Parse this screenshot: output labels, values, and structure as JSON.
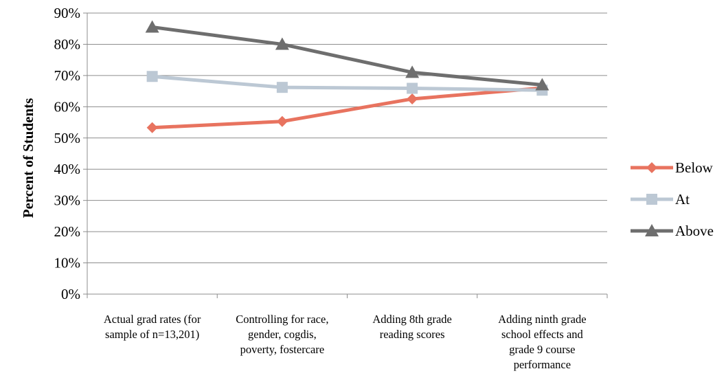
{
  "chart_data": {
    "type": "line",
    "ylabel": "Percent of Students",
    "ylim": [
      0,
      90
    ],
    "ytick_step": 10,
    "ytick_suffix": "%",
    "grid": true,
    "legend_position": "right",
    "categories": [
      [
        "Actual grad rates (for",
        "sample of n=13,201)"
      ],
      [
        "Controlling for race,",
        "gender, cogdis,",
        "poverty, fostercare"
      ],
      [
        "Adding 8th grade",
        "reading scores"
      ],
      [
        "Adding ninth grade",
        "school effects and",
        "grade 9 course",
        "performance"
      ]
    ],
    "series": [
      {
        "name": "Below",
        "marker": "diamond",
        "color": "#E8735F",
        "values": [
          53.3,
          55.3,
          62.5,
          66.0
        ]
      },
      {
        "name": "At",
        "marker": "square",
        "color": "#BCC8D4",
        "values": [
          69.7,
          66.2,
          65.9,
          65.3
        ]
      },
      {
        "name": "Above",
        "marker": "triangle",
        "color": "#6E6E6E",
        "values": [
          85.5,
          80.0,
          71.0,
          67.0
        ]
      }
    ]
  }
}
